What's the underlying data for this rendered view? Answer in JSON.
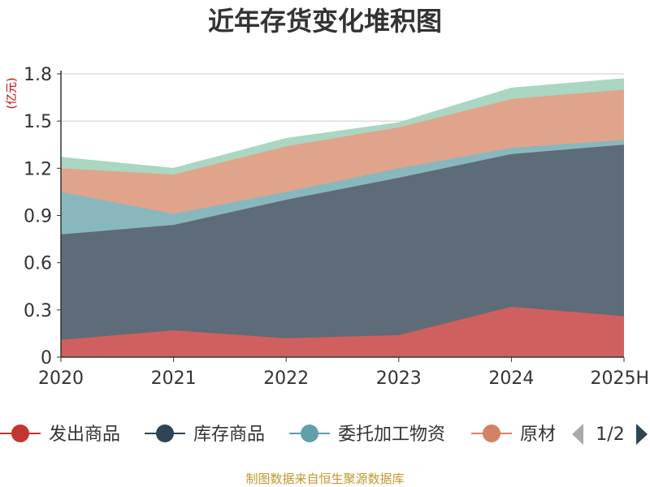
{
  "chart_data": {
    "type": "area",
    "stacked": true,
    "title": "近年存货变化堆积图",
    "ylabel": "(亿元)",
    "ylim": [
      0,
      1.8
    ],
    "yticks": [
      "0",
      "0.3",
      "0.6",
      "0.9",
      "1.2",
      "1.5",
      "1.8"
    ],
    "categories": [
      "2020",
      "2021",
      "2022",
      "2023",
      "2024",
      "2025H"
    ],
    "grid": true,
    "legend_position": "bottom",
    "series": [
      {
        "name": "发出商品",
        "color": "#d0605f",
        "values": [
          0.11,
          0.17,
          0.12,
          0.14,
          0.32,
          0.26
        ]
      },
      {
        "name": "库存商品",
        "color": "#5d6c78",
        "values": [
          0.67,
          0.67,
          0.88,
          1.0,
          0.97,
          1.09
        ]
      },
      {
        "name": "委托加工物资",
        "color": "#88b8bd",
        "values": [
          0.27,
          0.07,
          0.05,
          0.06,
          0.04,
          0.03
        ]
      },
      {
        "name": "原材料",
        "color": "#e0a48c",
        "values": [
          0.15,
          0.25,
          0.29,
          0.26,
          0.31,
          0.32
        ]
      },
      {
        "name": "",
        "color": "#abd6c1",
        "values": [
          0.07,
          0.04,
          0.05,
          0.03,
          0.07,
          0.07
        ]
      }
    ]
  },
  "legend": {
    "items": [
      {
        "label": "发出商品",
        "color": "#c23531"
      },
      {
        "label": "库存商品",
        "color": "#2f4554"
      },
      {
        "label": "委托加工物资",
        "color": "#61a0a8"
      },
      {
        "label": "原材",
        "color": "#d48265"
      }
    ],
    "page_indicator": "1/2"
  },
  "source": "制图数据来自恒生聚源数据库"
}
